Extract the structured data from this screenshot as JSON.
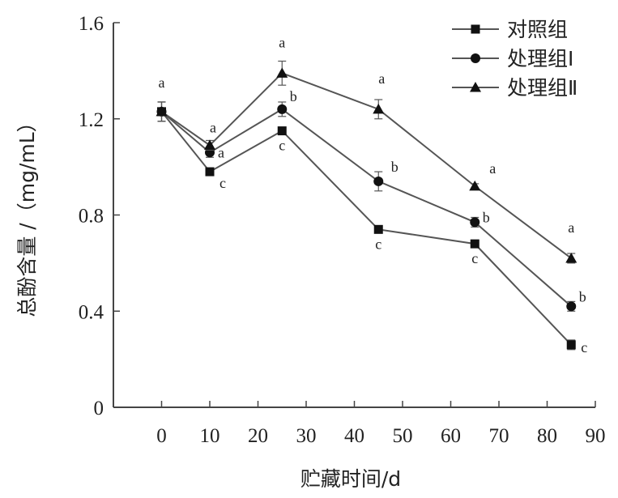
{
  "chart_data": {
    "type": "line",
    "xlabel": "贮藏时间/d",
    "ylabel": "总酚含量 /（mg/mL）",
    "xlim": [
      -10,
      90
    ],
    "ylim": [
      0,
      1.6
    ],
    "x_ticks": [
      "0",
      "10",
      "20",
      "30",
      "40",
      "50",
      "60",
      "70",
      "80",
      "90"
    ],
    "y_ticks": [
      "0",
      "0.4",
      "0.8",
      "1.2",
      "1.6"
    ],
    "grid": false,
    "legend_position": "top-right",
    "x": [
      0,
      10,
      25,
      45,
      65,
      85
    ],
    "series": [
      {
        "name": "对照组",
        "marker": "square",
        "values": [
          1.23,
          0.98,
          1.15,
          0.74,
          0.68,
          0.26
        ],
        "errors": [
          0.04,
          0.01,
          0.01,
          0.01,
          0.01,
          0.02
        ],
        "labels": [
          "a",
          "c",
          "c",
          "c",
          "c",
          "c"
        ]
      },
      {
        "name": "处理组Ⅰ",
        "marker": "circle",
        "values": [
          1.23,
          1.06,
          1.24,
          0.94,
          0.77,
          0.42
        ],
        "errors": [
          0.04,
          0.02,
          0.03,
          0.04,
          0.02,
          0.02
        ],
        "labels": [
          "a",
          "a",
          "b",
          "b",
          "b",
          "b"
        ]
      },
      {
        "name": "处理组Ⅱ",
        "marker": "triangle",
        "values": [
          1.23,
          1.09,
          1.39,
          1.24,
          0.92,
          0.62
        ],
        "errors": [
          0.04,
          0.02,
          0.05,
          0.04,
          0.01,
          0.02
        ],
        "labels": [
          "a",
          "a",
          "a",
          "a",
          "a",
          "a"
        ]
      }
    ],
    "colors": {
      "line": "#555555",
      "marker": "#111111",
      "axis": "#444444"
    }
  }
}
